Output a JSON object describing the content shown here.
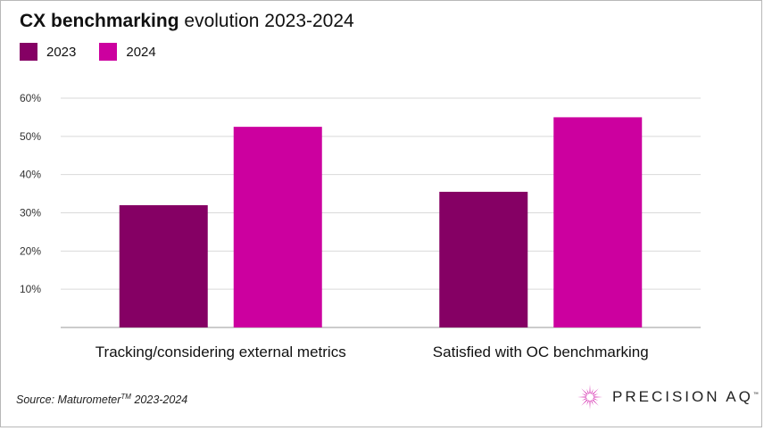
{
  "title": {
    "bold": "CX benchmarking",
    "rest": "evolution 2023-2024"
  },
  "colors": {
    "2023": "#850064",
    "2024": "#cc009f",
    "grid": "#d9d9d9",
    "axis": "#999999",
    "logo": "#cc009f"
  },
  "chart_data": {
    "type": "bar",
    "title": "CX benchmarking evolution 2023-2024",
    "categories": [
      "Tracking/considering external metrics",
      "Satisfied with OC benchmarking"
    ],
    "series": [
      {
        "name": "2023",
        "values": [
          32,
          35.5
        ]
      },
      {
        "name": "2024",
        "values": [
          52.5,
          55
        ]
      }
    ],
    "ylim": [
      0,
      60
    ],
    "yticks": [
      10,
      20,
      30,
      40,
      50,
      60
    ],
    "ytick_labels": [
      "10%",
      "20%",
      "30%",
      "40%",
      "50%",
      "60%"
    ],
    "xlabel": "",
    "ylabel": "",
    "grid": true,
    "legend": "top-left"
  },
  "source": {
    "prefix": "Source: Maturometer",
    "tm": "TM",
    "suffix": " 2023-2024"
  },
  "logo": {
    "text": "PRECISION AQ",
    "tm": "™"
  }
}
